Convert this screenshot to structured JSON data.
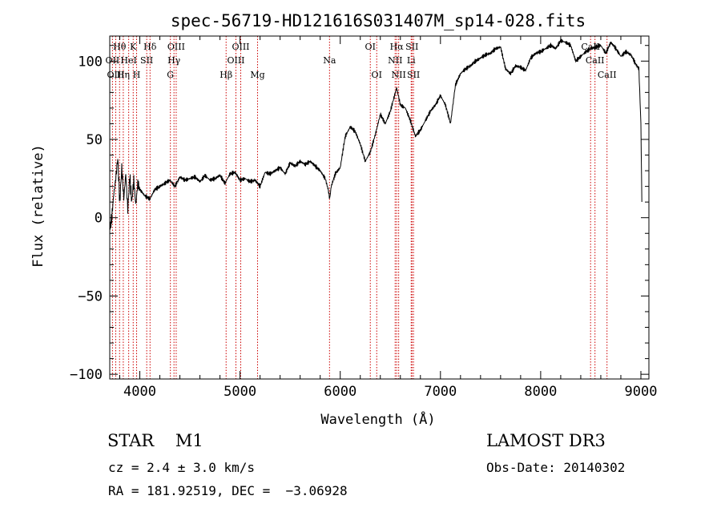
{
  "chart_data": {
    "type": "line",
    "title": "spec-56719-HD121616S031407M_sp14-028.fits",
    "xlabel": "Wavelength (Å)",
    "ylabel": "Flux (relative)",
    "xlim": [
      3700,
      9080
    ],
    "ylim": [
      -103,
      116
    ],
    "xticks": [
      4000,
      5000,
      6000,
      7000,
      8000,
      9000
    ],
    "yticks": [
      -100,
      -50,
      0,
      50,
      100
    ],
    "xtick_labels": [
      "4000",
      "5000",
      "6000",
      "7000",
      "8000",
      "9000"
    ],
    "ytick_labels": [
      "−100",
      "−50",
      "0",
      "50",
      "100"
    ],
    "grid": false,
    "legend": "none",
    "line_color": "#000000",
    "marker_color": "#cc0000",
    "spectrum": {
      "name": "",
      "x": [
        3700,
        3720,
        3740,
        3760,
        3780,
        3800,
        3820,
        3840,
        3860,
        3880,
        3900,
        3920,
        3940,
        3960,
        3980,
        4000,
        4050,
        4100,
        4150,
        4200,
        4250,
        4300,
        4350,
        4400,
        4450,
        4500,
        4550,
        4600,
        4650,
        4700,
        4750,
        4800,
        4850,
        4900,
        4950,
        5000,
        5050,
        5100,
        5150,
        5200,
        5250,
        5300,
        5350,
        5400,
        5450,
        5500,
        5550,
        5600,
        5650,
        5700,
        5750,
        5800,
        5850,
        5880,
        5895,
        5910,
        5950,
        6000,
        6050,
        6100,
        6150,
        6200,
        6250,
        6300,
        6350,
        6400,
        6450,
        6500,
        6550,
        6563,
        6600,
        6650,
        6700,
        6750,
        6800,
        6850,
        6900,
        6950,
        7000,
        7050,
        7100,
        7150,
        7200,
        7250,
        7300,
        7350,
        7400,
        7450,
        7500,
        7550,
        7600,
        7650,
        7700,
        7750,
        7800,
        7850,
        7900,
        7950,
        8000,
        8050,
        8100,
        8150,
        8200,
        8250,
        8300,
        8350,
        8400,
        8450,
        8500,
        8550,
        8600,
        8650,
        8700,
        8750,
        8800,
        8850,
        8900,
        8950,
        8980,
        9000,
        9010
      ],
      "y": [
        -8,
        0,
        15,
        25,
        38,
        10,
        32,
        12,
        28,
        5,
        26,
        10,
        24,
        8,
        22,
        18,
        14,
        12,
        18,
        20,
        22,
        24,
        20,
        26,
        24,
        25,
        26,
        23,
        27,
        24,
        25,
        27,
        22,
        28,
        29,
        24,
        25,
        23,
        24,
        20,
        29,
        28,
        30,
        32,
        28,
        35,
        33,
        36,
        34,
        36,
        33,
        30,
        25,
        18,
        12,
        20,
        28,
        32,
        52,
        58,
        55,
        47,
        36,
        42,
        53,
        66,
        60,
        68,
        80,
        83,
        72,
        70,
        62,
        52,
        56,
        62,
        68,
        72,
        78,
        72,
        60,
        85,
        92,
        95,
        97,
        100,
        102,
        104,
        105,
        108,
        109,
        95,
        92,
        97,
        96,
        94,
        102,
        105,
        106,
        108,
        110,
        108,
        113,
        112,
        110,
        100,
        103,
        106,
        108,
        109,
        110,
        105,
        112,
        108,
        103,
        106,
        104,
        98,
        95,
        60,
        10
      ]
    },
    "spectral_lines": [
      {
        "label": "Hθ",
        "x": 3798,
        "row": 0
      },
      {
        "label": "OII",
        "x": 3727,
        "row": 1
      },
      {
        "label": "OIII",
        "x": 3760,
        "row": 2
      },
      {
        "label": "K",
        "x": 3934,
        "row": 0
      },
      {
        "label": "HeI",
        "x": 3889,
        "row": 1
      },
      {
        "label": "Hη",
        "x": 3835,
        "row": 2
      },
      {
        "label": "SII",
        "x": 4069,
        "row": 1
      },
      {
        "label": "H",
        "x": 3968,
        "row": 2
      },
      {
        "label": "Hδ",
        "x": 4102,
        "row": 0
      },
      {
        "label": "OIII",
        "x": 4363,
        "row": 0
      },
      {
        "label": "Hγ",
        "x": 4341,
        "row": 1
      },
      {
        "label": "G",
        "x": 4305,
        "row": 2
      },
      {
        "label": "Hβ",
        "x": 4861,
        "row": 2
      },
      {
        "label": "OIII",
        "x": 5007,
        "row": 0
      },
      {
        "label": "OIII",
        "x": 4959,
        "row": 1
      },
      {
        "label": "Mg",
        "x": 5175,
        "row": 2
      },
      {
        "label": "Na",
        "x": 5893,
        "row": 1
      },
      {
        "label": "OI",
        "x": 6300,
        "row": 0
      },
      {
        "label": "OI",
        "x": 6364,
        "row": 2
      },
      {
        "label": "Hα",
        "x": 6563,
        "row": 0
      },
      {
        "label": "NII",
        "x": 6548,
        "row": 1
      },
      {
        "label": "NII",
        "x": 6583,
        "row": 2
      },
      {
        "label": "SII",
        "x": 6716,
        "row": 0
      },
      {
        "label": "Li",
        "x": 6708,
        "row": 1
      },
      {
        "label": "SII",
        "x": 6731,
        "row": 2
      },
      {
        "label": "CaII",
        "x": 8498,
        "row": 0
      },
      {
        "label": "CaII",
        "x": 8542,
        "row": 1
      },
      {
        "label": "CaII",
        "x": 8662,
        "row": 2
      }
    ]
  },
  "info": {
    "object_class": "STAR    M1",
    "redshift": "cz = 2.4 ± 3.0 km/s",
    "coordinates": "RA = 181.92519, DEC =  −3.06928",
    "survey": "LAMOST DR3",
    "obs_date": "Obs-Date: 20140302"
  }
}
